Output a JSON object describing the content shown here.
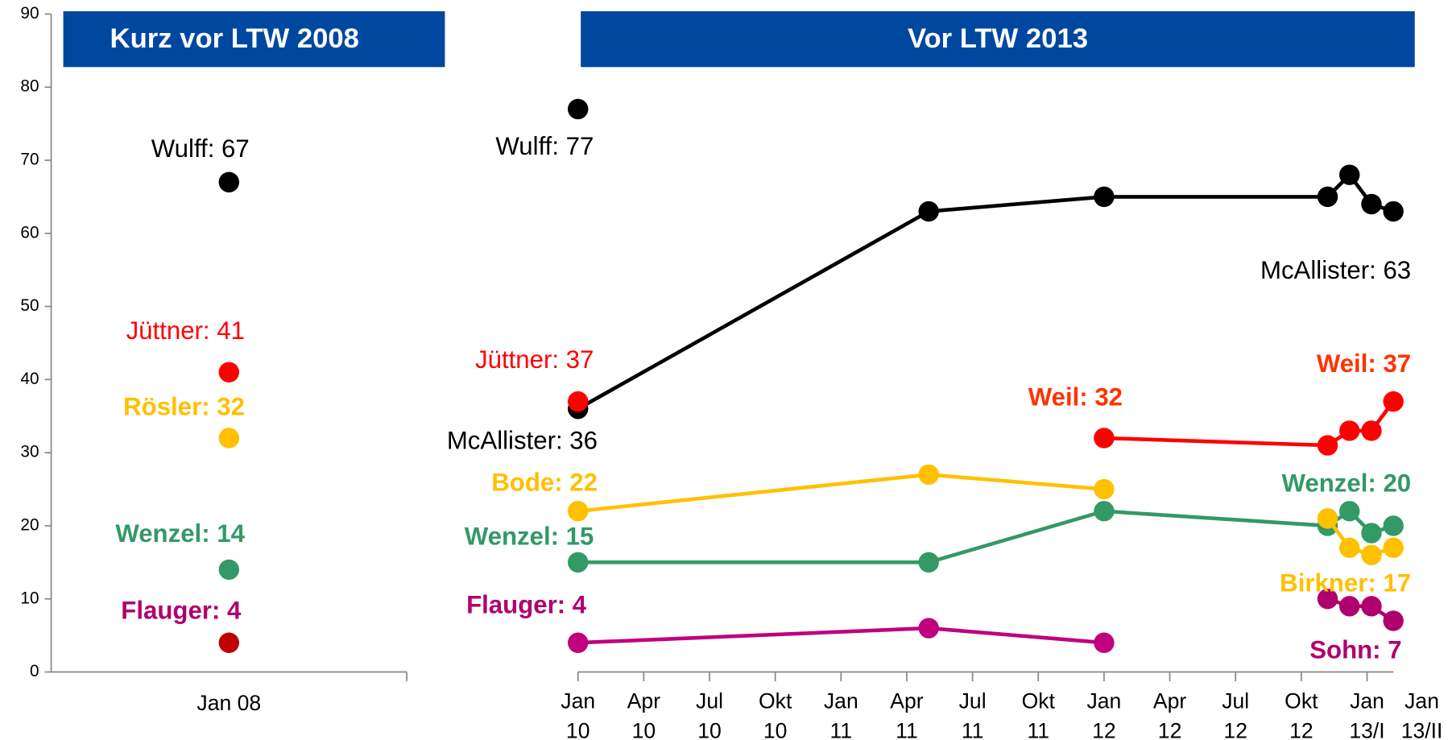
{
  "chart_data": [
    {
      "type": "scatter",
      "title": "Kurz vor LTW 2008",
      "categories": [
        "Jan 08"
      ],
      "ylim": [
        0,
        90
      ],
      "yticks": [
        0,
        10,
        20,
        30,
        40,
        50,
        60,
        70,
        80,
        90
      ],
      "series": [
        {
          "name": "Wulff",
          "color": "#000000",
          "label_color": "#000000",
          "values": [
            67
          ],
          "value_labels": [
            "Wulff: 67"
          ]
        },
        {
          "name": "Jüttner",
          "color": "#ff0000",
          "label_color": "#ff0000",
          "values": [
            41
          ],
          "value_labels": [
            "Jüttner: 41"
          ]
        },
        {
          "name": "Rösler",
          "color": "#ffc000",
          "label_color": "#ffc000",
          "values": [
            32
          ],
          "value_labels": [
            "Rösler: 32"
          ]
        },
        {
          "name": "Wenzel",
          "color": "#339966",
          "label_color": "#339966",
          "values": [
            14
          ],
          "value_labels": [
            "Wenzel: 14"
          ]
        },
        {
          "name": "Flauger",
          "color": "#c00000",
          "label_color": "#b0006e",
          "values": [
            4
          ],
          "value_labels": [
            "Flauger: 4"
          ]
        }
      ]
    },
    {
      "type": "line",
      "title": "Vor LTW 2013",
      "x": [
        0,
        16,
        24,
        34.2,
        35.2,
        36.2,
        37.2
      ],
      "xlim": [
        0,
        37.2
      ],
      "xticks": [
        {
          "value": 0,
          "label": "Jan 10"
        },
        {
          "value": 3,
          "label": "Apr 10"
        },
        {
          "value": 6,
          "label": "Jul 10"
        },
        {
          "value": 9,
          "label": "Okt 10"
        },
        {
          "value": 12,
          "label": "Jan 11"
        },
        {
          "value": 15,
          "label": "Apr 11"
        },
        {
          "value": 18,
          "label": "Jul 11"
        },
        {
          "value": 21,
          "label": "Okt 11"
        },
        {
          "value": 24,
          "label": "Jan 12"
        },
        {
          "value": 27,
          "label": "Apr 12"
        },
        {
          "value": 30,
          "label": "Jul 12"
        },
        {
          "value": 33,
          "label": "Okt 12"
        },
        {
          "value": 36,
          "label": "Jan 13/I"
        },
        {
          "value": 38.5,
          "label": "Jan 13/II"
        }
      ],
      "ylim": [
        0,
        90
      ],
      "series": [
        {
          "name": "Wulff",
          "color": "#000000",
          "label_color": "#000000",
          "values": [
            77,
            null,
            null,
            null,
            null,
            null,
            null
          ],
          "value_labels": [
            "Wulff: 77",
            null,
            null,
            null,
            null,
            null,
            null
          ]
        },
        {
          "name": "McAllister",
          "color": "#000000",
          "label_color": "#000000",
          "values": [
            36,
            63,
            65,
            65,
            68,
            64,
            63
          ],
          "value_labels": [
            "McAllister: 36",
            null,
            null,
            null,
            null,
            null,
            "McAllister: 63"
          ]
        },
        {
          "name": "Jüttner",
          "color": "#ff0000",
          "label_color": "#ff0000",
          "values": [
            37,
            null,
            null,
            null,
            null,
            null,
            null
          ],
          "value_labels": [
            "Jüttner: 37",
            null,
            null,
            null,
            null,
            null,
            null
          ]
        },
        {
          "name": "Weil",
          "color": "#ff0000",
          "label_color": "#ff3300",
          "values": [
            null,
            null,
            32,
            31,
            33,
            33,
            37
          ],
          "value_labels": [
            null,
            null,
            "Weil: 32",
            null,
            null,
            null,
            "Weil: 37"
          ]
        },
        {
          "name": "Bode",
          "color": "#ffc000",
          "label_color": "#ffc000",
          "values": [
            22,
            27,
            25,
            null,
            null,
            null,
            null
          ],
          "value_labels": [
            "Bode: 22",
            null,
            null,
            null,
            null,
            null,
            null
          ]
        },
        {
          "name": "Wenzel",
          "color": "#339966",
          "label_color": "#339966",
          "values": [
            15,
            15,
            22,
            20,
            22,
            19,
            20
          ],
          "value_labels": [
            "Wenzel: 15",
            null,
            null,
            null,
            null,
            null,
            "Wenzel: 20"
          ]
        },
        {
          "name": "Birkner",
          "color": "#ffc000",
          "label_color": "#ffc000",
          "values": [
            null,
            null,
            null,
            21,
            17,
            16,
            17
          ],
          "value_labels": [
            null,
            null,
            null,
            null,
            null,
            null,
            "Birkner: 17"
          ]
        },
        {
          "name": "Flauger",
          "color": "#c0007f",
          "label_color": "#b0006e",
          "values": [
            4,
            6,
            4,
            null,
            null,
            null,
            null
          ],
          "value_labels": [
            "Flauger: 4",
            null,
            null,
            null,
            null,
            null,
            null
          ]
        },
        {
          "name": "Sohn",
          "color": "#b0006e",
          "label_color": "#b0006e",
          "values": [
            null,
            null,
            null,
            10,
            9,
            9,
            7
          ],
          "value_labels": [
            null,
            null,
            null,
            null,
            null,
            null,
            "Sohn: 7"
          ]
        }
      ]
    }
  ]
}
